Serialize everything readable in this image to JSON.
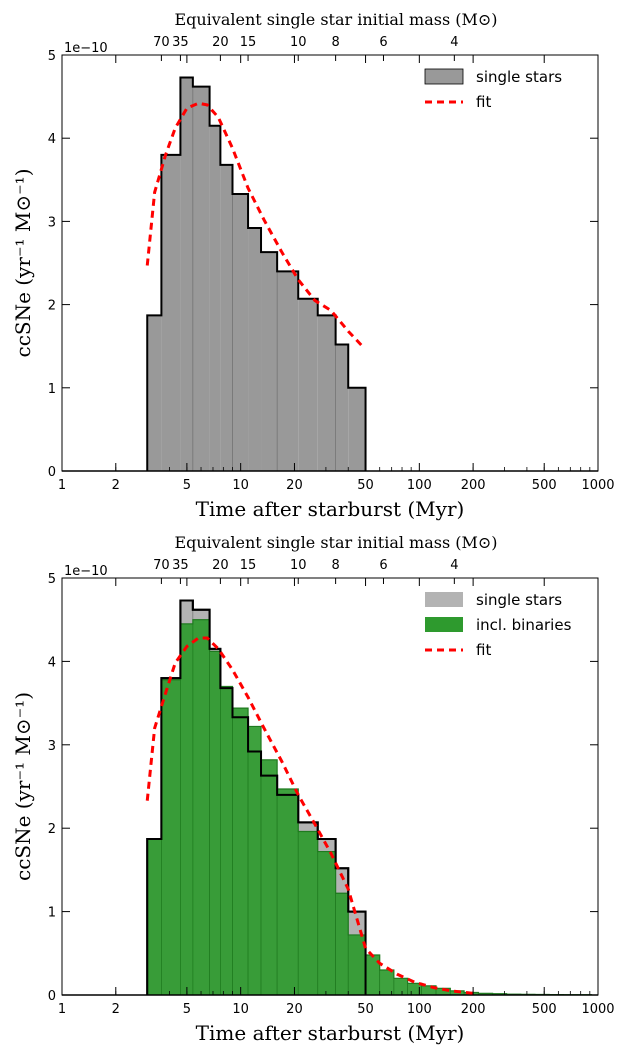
{
  "chart_data": [
    {
      "type": "histogram",
      "top_axis": {
        "label": "Equivalent single star initial mass (M⊙)",
        "ticks": [
          {
            "label": "70",
            "time_myr": 3.6
          },
          {
            "label": "35",
            "time_myr": 4.6
          },
          {
            "label": "20",
            "time_myr": 7.7
          },
          {
            "label": "15",
            "time_myr": 11.0
          },
          {
            "label": "10",
            "time_myr": 21.0
          },
          {
            "label": "8",
            "time_myr": 34.0
          },
          {
            "label": "6",
            "time_myr": 63.0
          },
          {
            "label": "4",
            "time_myr": 157.0
          }
        ]
      },
      "xlabel": "Time after starburst (Myr)",
      "ylabel": "ccSNe (yr⁻¹ M⊙⁻¹)",
      "y_multiplier": "1e−10",
      "x_scale": "log",
      "xlim": [
        1,
        1000
      ],
      "ylim": [
        0,
        5
      ],
      "x_ticks": [
        1,
        2,
        5,
        10,
        20,
        50,
        100,
        200,
        500,
        1000
      ],
      "x_tick_labels": [
        "1",
        "2",
        "5",
        "10",
        "20",
        "50",
        "100",
        "200",
        "500",
        "1000"
      ],
      "y_ticks": [
        0,
        1,
        2,
        3,
        4,
        5
      ],
      "y_tick_labels": [
        "0",
        "1",
        "2",
        "3",
        "4",
        "5"
      ],
      "legend_position": "top-right",
      "series": [
        {
          "name": "single stars",
          "kind": "step",
          "color": "#999999",
          "edge": "#000000",
          "edges": [
            3.0,
            3.6,
            4.6,
            5.4,
            6.7,
            7.7,
            9.0,
            11.0,
            13.0,
            16.0,
            21.0,
            27.0,
            34.0,
            40.0,
            50.0
          ],
          "values": [
            1.87,
            3.8,
            4.73,
            4.62,
            4.15,
            3.68,
            3.33,
            2.92,
            2.63,
            2.4,
            2.07,
            1.87,
            1.52,
            1.0,
            0.0
          ]
        },
        {
          "name": "fit",
          "kind": "dashed-line",
          "color": "#ff0000",
          "x": [
            3.0,
            3.3,
            3.8,
            4.3,
            5.0,
            5.8,
            6.5,
            7.5,
            9.0,
            11.0,
            13.5,
            17.0,
            21.0,
            26.0,
            32.0,
            40.0,
            48.0
          ],
          "y": [
            2.47,
            3.35,
            3.8,
            4.12,
            4.36,
            4.42,
            4.4,
            4.25,
            3.88,
            3.4,
            3.02,
            2.63,
            2.3,
            2.05,
            1.93,
            1.68,
            1.5
          ]
        }
      ]
    },
    {
      "type": "histogram",
      "top_axis": {
        "label": "Equivalent single star initial mass (M⊙)",
        "ticks": [
          {
            "label": "70",
            "time_myr": 3.6
          },
          {
            "label": "35",
            "time_myr": 4.6
          },
          {
            "label": "20",
            "time_myr": 7.7
          },
          {
            "label": "15",
            "time_myr": 11.0
          },
          {
            "label": "10",
            "time_myr": 21.0
          },
          {
            "label": "8",
            "time_myr": 34.0
          },
          {
            "label": "6",
            "time_myr": 63.0
          },
          {
            "label": "4",
            "time_myr": 157.0
          }
        ]
      },
      "xlabel": "Time after starburst (Myr)",
      "ylabel": "ccSNe (yr⁻¹ M⊙⁻¹)",
      "y_multiplier": "1e−10",
      "x_scale": "log",
      "xlim": [
        1,
        1000
      ],
      "ylim": [
        0,
        5
      ],
      "x_ticks": [
        1,
        2,
        5,
        10,
        20,
        50,
        100,
        200,
        500,
        1000
      ],
      "x_tick_labels": [
        "1",
        "2",
        "5",
        "10",
        "20",
        "50",
        "100",
        "200",
        "500",
        "1000"
      ],
      "y_ticks": [
        0,
        1,
        2,
        3,
        4,
        5
      ],
      "y_tick_labels": [
        "0",
        "1",
        "2",
        "3",
        "4",
        "5"
      ],
      "legend_position": "top-right",
      "series": [
        {
          "name": "single stars",
          "kind": "step",
          "color": "#b3b3b3",
          "edge": "#000000",
          "edges": [
            3.0,
            3.6,
            4.6,
            5.4,
            6.7,
            7.7,
            9.0,
            11.0,
            13.0,
            16.0,
            21.0,
            27.0,
            34.0,
            40.0,
            50.0
          ],
          "values": [
            1.87,
            3.8,
            4.73,
            4.62,
            4.15,
            3.68,
            3.33,
            2.92,
            2.63,
            2.4,
            2.07,
            1.87,
            1.52,
            1.0,
            0.0
          ]
        },
        {
          "name": "incl. binaries",
          "kind": "step",
          "color": "#2e9a2e",
          "edge": "#1f7a1f",
          "edges": [
            3.0,
            3.6,
            4.6,
            5.4,
            6.7,
            7.7,
            9.0,
            11.0,
            13.0,
            16.0,
            21.0,
            27.0,
            34.0,
            40.0,
            50.0,
            60.0,
            72.0,
            86.0,
            103.0,
            124.0,
            149.0,
            178.0,
            214.0,
            257.0,
            308.0,
            370.0,
            444.0,
            533.0,
            640.0,
            768.0,
            920.0
          ],
          "values": [
            1.87,
            3.78,
            4.45,
            4.5,
            4.12,
            3.7,
            3.44,
            3.22,
            2.82,
            2.47,
            1.96,
            1.72,
            1.22,
            0.72,
            0.48,
            0.3,
            0.2,
            0.14,
            0.11,
            0.08,
            0.05,
            0.03,
            0.02,
            0.015,
            0.01,
            0.008,
            0.006,
            0.005,
            0.004,
            0.003
          ]
        },
        {
          "name": "fit",
          "kind": "dashed-line",
          "color": "#ff0000",
          "x": [
            3.0,
            3.3,
            3.8,
            4.3,
            5.0,
            5.8,
            6.5,
            7.5,
            9.0,
            11.0,
            13.5,
            17.0,
            21.0,
            26.0,
            32.0,
            40.0,
            50.0,
            60.0,
            75.0,
            95.0,
            120.0,
            150.0,
            200.0
          ],
          "y": [
            2.33,
            3.2,
            3.62,
            3.98,
            4.18,
            4.28,
            4.28,
            4.15,
            3.9,
            3.57,
            3.2,
            2.8,
            2.4,
            2.05,
            1.7,
            1.27,
            0.56,
            0.38,
            0.25,
            0.15,
            0.09,
            0.05,
            0.02
          ]
        }
      ]
    }
  ]
}
